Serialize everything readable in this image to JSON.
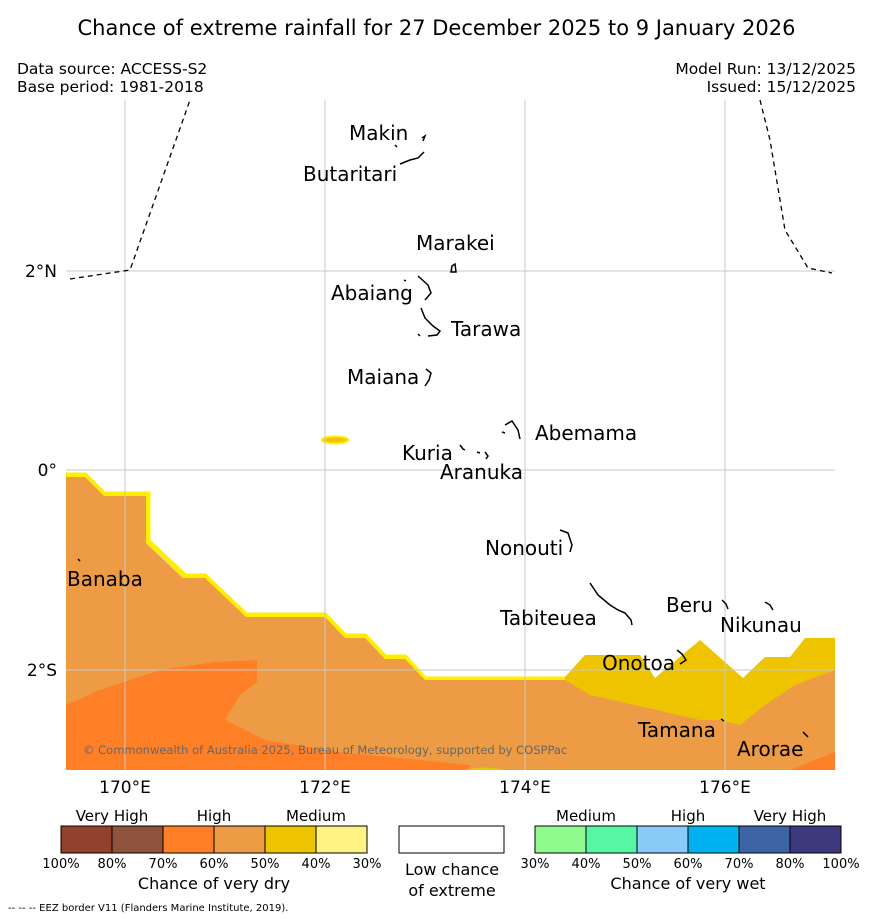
{
  "title": "Chance of extreme rainfall for 27 December 2025 to 9 January 2026",
  "meta": {
    "data_source": "Data source: ACCESS-S2",
    "base_period": "Base period: 1981-2018",
    "model_run": "Model Run: 13/12/2025",
    "issued": "Issued: 15/12/2025"
  },
  "map": {
    "lat_labels": [
      "2°N",
      "0°",
      "2°S"
    ],
    "lon_labels": [
      "170°E",
      "172°E",
      "174°E",
      "176°E"
    ],
    "places": {
      "makin": "Makin",
      "butaritari": "Butaritari",
      "marakei": "Marakei",
      "abaiang": "Abaiang",
      "tarawa": "Tarawa",
      "maiana": "Maiana",
      "abemama": "Abemama",
      "kuria": "Kuria",
      "aranuka": "Aranuka",
      "banaba": "Banaba",
      "nonouti": "Nonouti",
      "tabiteuea": "Tabiteuea",
      "beru": "Beru",
      "nikunau": "Nikunau",
      "onotoa": "Onotoa",
      "tamana": "Tamana",
      "arorae": "Arorae"
    },
    "copyright": "© Commonwealth of Australia 2025, Bureau of Meteorology, supported by COSPPac",
    "colors": {
      "dry_high_dark": "#ff7f26",
      "dry_high": "#ee9b45",
      "dry_medium": "#eec400",
      "dry_edge": "#ffee00",
      "grid": "#c8c8c8"
    }
  },
  "legend": {
    "dry": {
      "headers": [
        "Very High",
        "High",
        "Medium"
      ],
      "colors": [
        "#93412f",
        "#8f523d",
        "#ff7f26",
        "#ee9b45",
        "#eec400",
        "#fdf283"
      ],
      "ticks": [
        "100%",
        "80%",
        "70%",
        "60%",
        "50%",
        "40%",
        "30%"
      ],
      "title": "Chance of very dry"
    },
    "low": {
      "line1": "Low chance",
      "line2": "of extreme"
    },
    "wet": {
      "headers": [
        "Medium",
        "High",
        "Very High"
      ],
      "colors": [
        "#8ffb8f",
        "#55f7a4",
        "#8acaf8",
        "#00b2ef",
        "#3c64a4",
        "#3d3a7e"
      ],
      "ticks": [
        "30%",
        "40%",
        "50%",
        "60%",
        "70%",
        "80%",
        "100%"
      ],
      "title": "Chance of very wet"
    }
  },
  "footer": "--  --  -- EEZ border V11 (Flanders Marine Institute, 2019)."
}
